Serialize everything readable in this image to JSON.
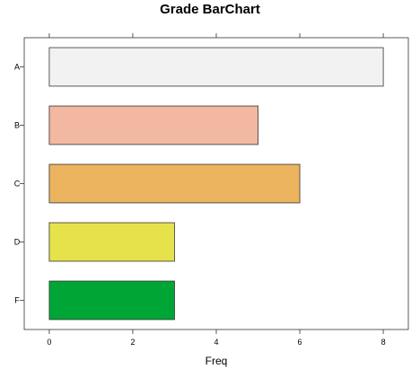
{
  "chart_data": {
    "type": "bar",
    "orientation": "horizontal",
    "title": "Grade BarChart",
    "xlabel": "Freq",
    "ylabel": "",
    "categories": [
      "A",
      "B",
      "C",
      "D",
      "F"
    ],
    "values": [
      8,
      5,
      6,
      3,
      3
    ],
    "colors": [
      "#f2f2f2",
      "#f2b8a2",
      "#ecb35e",
      "#e6e24c",
      "#00a635"
    ],
    "xlim": [
      -0.6,
      8.6
    ],
    "xticks": [
      0,
      2,
      4,
      6,
      8
    ],
    "xtick_labels": [
      "0",
      "2",
      "4",
      "6",
      "8"
    ],
    "grid": false,
    "legend": "none"
  }
}
